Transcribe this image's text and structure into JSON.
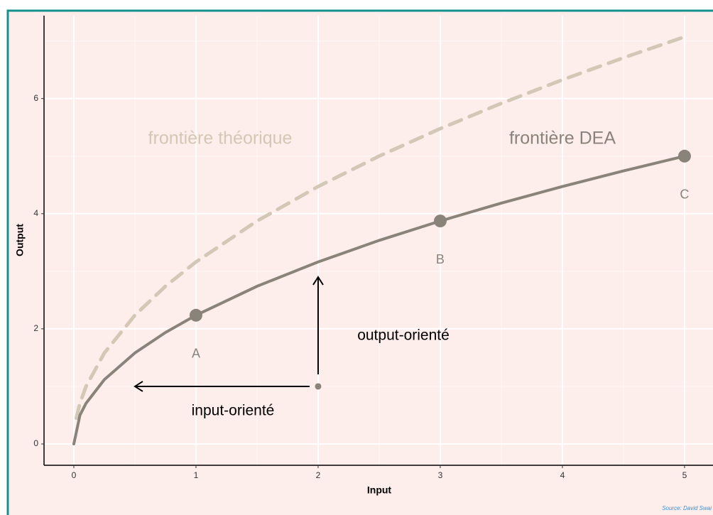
{
  "chart_data": {
    "type": "line",
    "x_label": "Input",
    "y_label": "Output",
    "xlim": [
      -0.244,
      5.233
    ],
    "ylim": [
      -0.37,
      7.44
    ],
    "xticks": [
      0,
      1,
      2,
      3,
      4,
      5
    ],
    "yticks": [
      0,
      2,
      4,
      6
    ],
    "xminor": [
      0.5,
      1.5,
      2.5,
      3.5,
      4.5
    ],
    "yminor": [
      1,
      3,
      5,
      7
    ],
    "grid": true,
    "series": [
      {
        "color": "#d3c7b6",
        "dashed": true,
        "x": [
          0.02,
          0.05,
          0.1,
          0.25,
          0.5,
          0.75,
          1,
          1.5,
          2,
          2.5,
          3,
          3.5,
          4,
          4.5,
          5
        ],
        "values": [
          0.447,
          0.707,
          1,
          1.581,
          2.236,
          2.739,
          3.162,
          3.873,
          4.472,
          5,
          5.477,
          5.916,
          6.325,
          6.708,
          7.071
        ]
      },
      {
        "color": "#8a8379",
        "dashed": false,
        "x": [
          0,
          0.05,
          0.1,
          0.25,
          0.5,
          0.75,
          1,
          1.5,
          2,
          2.5,
          3,
          3.5,
          4,
          4.5,
          5
        ],
        "values": [
          0,
          0.5,
          0.707,
          1.118,
          1.581,
          1.936,
          2.236,
          2.739,
          3.162,
          3.536,
          3.873,
          4.183,
          4.472,
          4.743,
          5
        ]
      }
    ],
    "points": {
      "x": [
        1,
        3,
        5
      ],
      "values": [
        2.236,
        3.873,
        5
      ],
      "labels": [
        "A",
        "B",
        "C"
      ],
      "color": "#8a8379"
    },
    "unit": {
      "x": 2,
      "y": 1
    },
    "annotations": [
      "frontière théorique",
      "frontière DEA",
      "output-orienté",
      "input-orienté"
    ],
    "source": "Source: David Swai"
  }
}
